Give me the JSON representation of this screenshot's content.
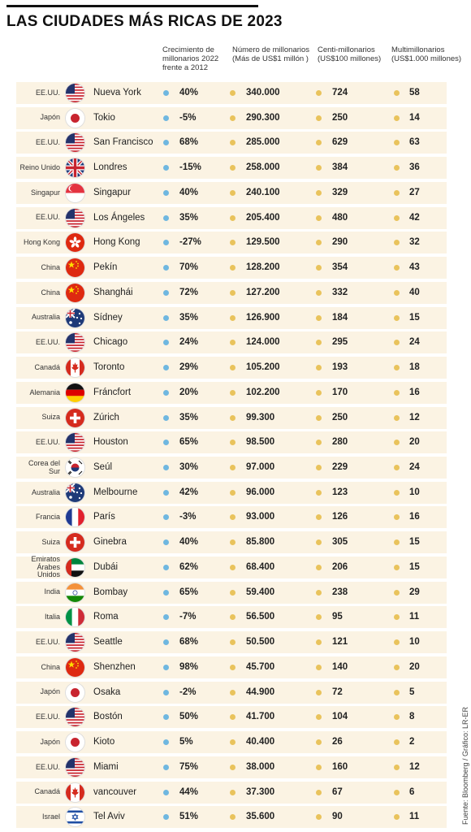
{
  "title": "LAS CIUDADES MÁS RICAS DE 2023",
  "headers": {
    "growth": "Crecimiento de\nmillonarios 2022\nfrente a 2012",
    "millionaires": "Número de millonarios\n(Más de US$1 millón )",
    "centi": "Centi-millonarios\n(US$100 millones)",
    "multi": "Multimillonarios\n(US$1.000 millones)"
  },
  "source": "Fuente: Bloomberg / Gráfico: LR-ER",
  "colors": {
    "growth_dot": "#6fb7e0",
    "value_dot": "#e9c35c",
    "row_bg": "#fbf3e3"
  },
  "chart_data": {
    "type": "table",
    "title": "LAS CIUDADES MÁS RICAS DE 2023",
    "columns": [
      "Crecimiento de millonarios 2022 frente a 2012",
      "Número de millonarios (Más de US$1 millón )",
      "Centi-millonarios (US$100 millones)",
      "Multimillonarios (US$1.000 millones)"
    ],
    "rows": [
      {
        "country": "EE.UU.",
        "flag": "usa-flag-icon",
        "city": "Nueva York",
        "growth": "40%",
        "millionaires": "340.000",
        "centi": "724",
        "multi": "58"
      },
      {
        "country": "Japón",
        "flag": "japan-flag-icon",
        "city": "Tokio",
        "growth": "-5%",
        "millionaires": "290.300",
        "centi": "250",
        "multi": "14"
      },
      {
        "country": "EE.UU.",
        "flag": "usa-flag-icon",
        "city": "San Francisco",
        "growth": "68%",
        "millionaires": "285.000",
        "centi": "629",
        "multi": "63"
      },
      {
        "country": "Reino Unido",
        "flag": "uk-flag-icon",
        "city": "Londres",
        "growth": "-15%",
        "millionaires": "258.000",
        "centi": "384",
        "multi": "36"
      },
      {
        "country": "Singapur",
        "flag": "singapore-flag-icon",
        "city": "Singapur",
        "growth": "40%",
        "millionaires": "240.100",
        "centi": "329",
        "multi": "27"
      },
      {
        "country": "EE.UU.",
        "flag": "usa-flag-icon",
        "city": "Los Ángeles",
        "growth": "35%",
        "millionaires": "205.400",
        "centi": "480",
        "multi": "42"
      },
      {
        "country": "Hong Kong",
        "flag": "hongkong-flag-icon",
        "city": "Hong Kong",
        "growth": "-27%",
        "millionaires": "129.500",
        "centi": "290",
        "multi": "32"
      },
      {
        "country": "China",
        "flag": "china-flag-icon",
        "city": "Pekín",
        "growth": "70%",
        "millionaires": "128.200",
        "centi": "354",
        "multi": "43"
      },
      {
        "country": "China",
        "flag": "china-flag-icon",
        "city": "Shanghái",
        "growth": "72%",
        "millionaires": "127.200",
        "centi": "332",
        "multi": "40"
      },
      {
        "country": "Australia",
        "flag": "australia-flag-icon",
        "city": "Sídney",
        "growth": "35%",
        "millionaires": "126.900",
        "centi": "184",
        "multi": "15"
      },
      {
        "country": "EE.UU.",
        "flag": "usa-flag-icon",
        "city": "Chicago",
        "growth": "24%",
        "millionaires": "124.000",
        "centi": "295",
        "multi": "24"
      },
      {
        "country": "Canadá",
        "flag": "canada-flag-icon",
        "city": "Toronto",
        "growth": "29%",
        "millionaires": "105.200",
        "centi": "193",
        "multi": "18"
      },
      {
        "country": "Alemania",
        "flag": "germany-flag-icon",
        "city": "Fráncfort",
        "growth": "20%",
        "millionaires": "102.200",
        "centi": "170",
        "multi": "16"
      },
      {
        "country": "Suiza",
        "flag": "switzerland-flag-icon",
        "city": "Zúrich",
        "growth": "35%",
        "millionaires": "99.300",
        "centi": "250",
        "multi": "12"
      },
      {
        "country": "EE.UU.",
        "flag": "usa-flag-icon",
        "city": "Houston",
        "growth": "65%",
        "millionaires": "98.500",
        "centi": "280",
        "multi": "20"
      },
      {
        "country": "Corea del Sur",
        "flag": "korea-flag-icon",
        "city": "Seúl",
        "growth": "30%",
        "millionaires": "97.000",
        "centi": "229",
        "multi": "24"
      },
      {
        "country": "Australia",
        "flag": "australia-flag-icon",
        "city": "Melbourne",
        "growth": "42%",
        "millionaires": "96.000",
        "centi": "123",
        "multi": "10"
      },
      {
        "country": "Francia",
        "flag": "france-flag-icon",
        "city": "París",
        "growth": "-3%",
        "millionaires": "93.000",
        "centi": "126",
        "multi": "16"
      },
      {
        "country": "Suiza",
        "flag": "switzerland-flag-icon",
        "city": "Ginebra",
        "growth": "40%",
        "millionaires": "85.800",
        "centi": "305",
        "multi": "15"
      },
      {
        "country": "Emiratos Árabes Unidos",
        "flag": "uae-flag-icon",
        "city": "Dubái",
        "growth": "62%",
        "millionaires": "68.400",
        "centi": "206",
        "multi": "15"
      },
      {
        "country": "India",
        "flag": "india-flag-icon",
        "city": "Bombay",
        "growth": "65%",
        "millionaires": "59.400",
        "centi": "238",
        "multi": "29"
      },
      {
        "country": "Italia",
        "flag": "italy-flag-icon",
        "city": "Roma",
        "growth": "-7%",
        "millionaires": "56.500",
        "centi": "95",
        "multi": "11"
      },
      {
        "country": "EE.UU.",
        "flag": "usa-flag-icon",
        "city": "Seattle",
        "growth": "68%",
        "millionaires": "50.500",
        "centi": "121",
        "multi": "10"
      },
      {
        "country": "China",
        "flag": "china-flag-icon",
        "city": "Shenzhen",
        "growth": "98%",
        "millionaires": "45.700",
        "centi": "140",
        "multi": "20"
      },
      {
        "country": "Japón",
        "flag": "japan-flag-icon",
        "city": "Osaka",
        "growth": "-2%",
        "millionaires": "44.900",
        "centi": "72",
        "multi": "5"
      },
      {
        "country": "EE.UU.",
        "flag": "usa-flag-icon",
        "city": "Bostón",
        "growth": "50%",
        "millionaires": "41.700",
        "centi": "104",
        "multi": "8"
      },
      {
        "country": "Japón",
        "flag": "japan-flag-icon",
        "city": "Kioto",
        "growth": "5%",
        "millionaires": "40.400",
        "centi": "26",
        "multi": "2"
      },
      {
        "country": "EE.UU.",
        "flag": "usa-flag-icon",
        "city": "Miami",
        "growth": "75%",
        "millionaires": "38.000",
        "centi": "160",
        "multi": "12"
      },
      {
        "country": "Canadá",
        "flag": "canada-flag-icon",
        "city": "vancouver",
        "growth": "44%",
        "millionaires": "37.300",
        "centi": "67",
        "multi": "6"
      },
      {
        "country": "Israel",
        "flag": "israel-flag-icon",
        "city": "Tel Aviv",
        "growth": "51%",
        "millionaires": "35.600",
        "centi": "90",
        "multi": "11"
      }
    ]
  }
}
